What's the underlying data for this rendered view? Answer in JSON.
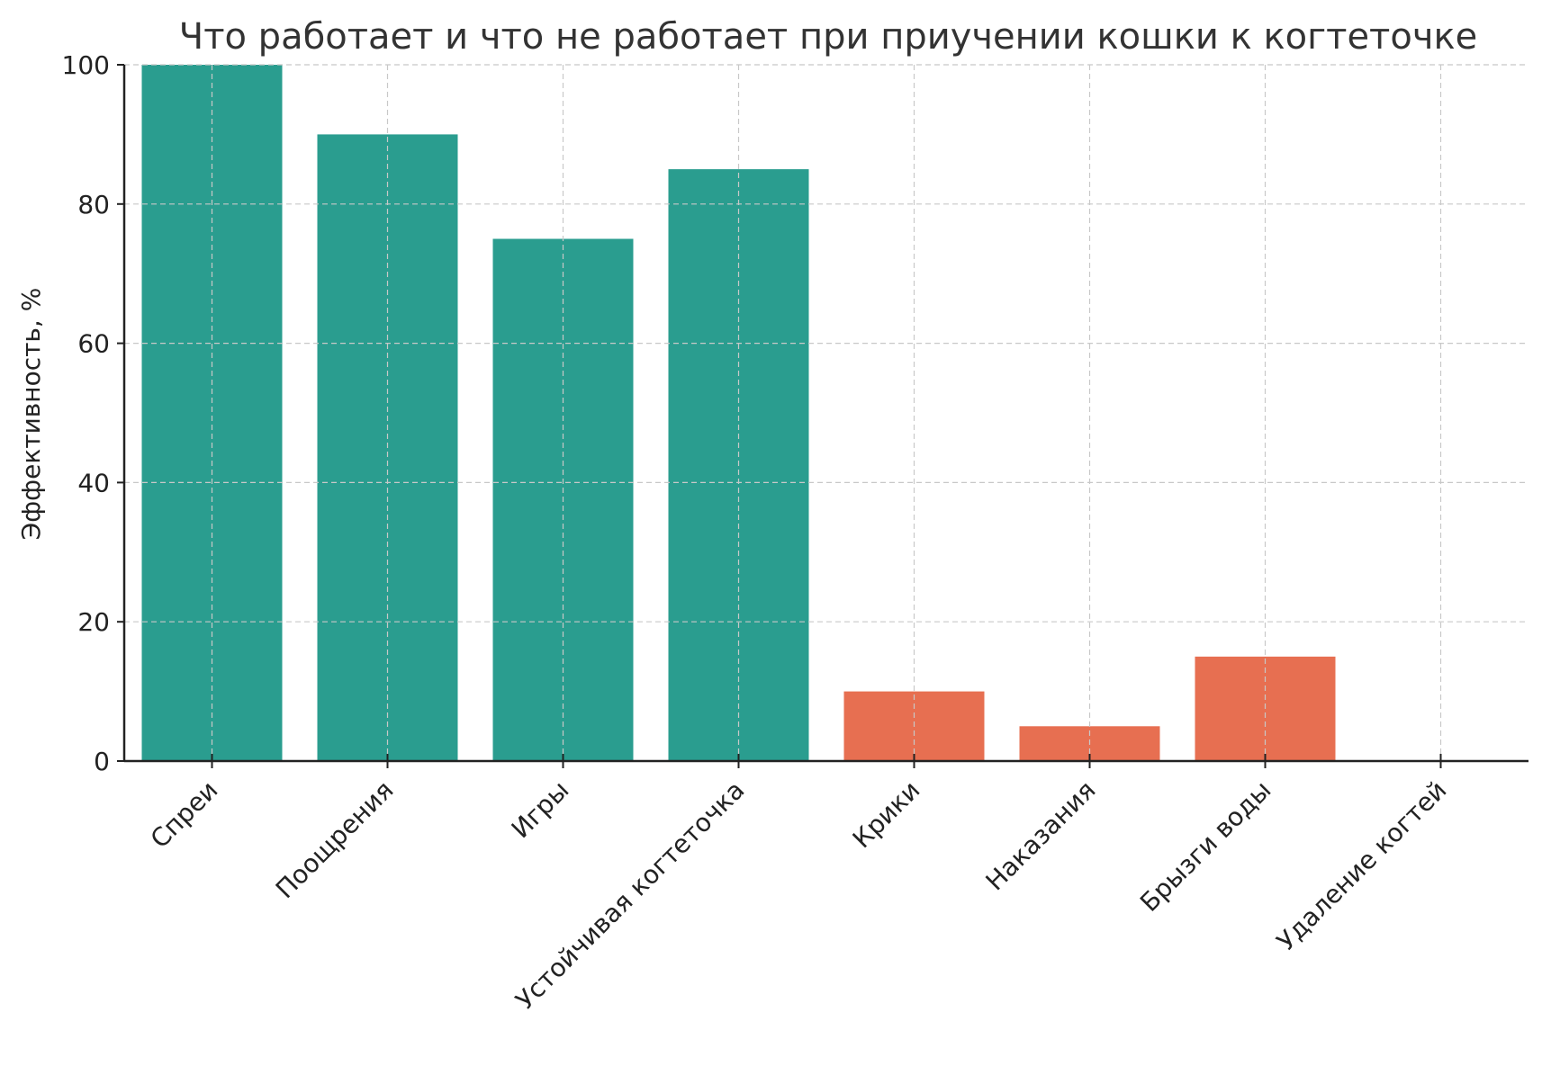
{
  "chart_data": {
    "type": "bar",
    "title": "Что работает и что не работает при приучении кошки к когтеточке",
    "xlabel": "",
    "ylabel": "Эффективность, %",
    "ylim": [
      0,
      100
    ],
    "yticks": [
      0,
      20,
      40,
      60,
      80,
      100
    ],
    "grid": true,
    "categories": [
      "Спреи",
      "Поощрения",
      "Игры",
      "Устойчивая когтеточка",
      "Крики",
      "Наказания",
      "Брызги воды",
      "Удаление когтей"
    ],
    "values": [
      100,
      90,
      75,
      85,
      10,
      5,
      15,
      0
    ],
    "colors": [
      "#2a9d8f",
      "#2a9d8f",
      "#2a9d8f",
      "#2a9d8f",
      "#e76f51",
      "#e76f51",
      "#e76f51",
      "#e76f51"
    ]
  }
}
